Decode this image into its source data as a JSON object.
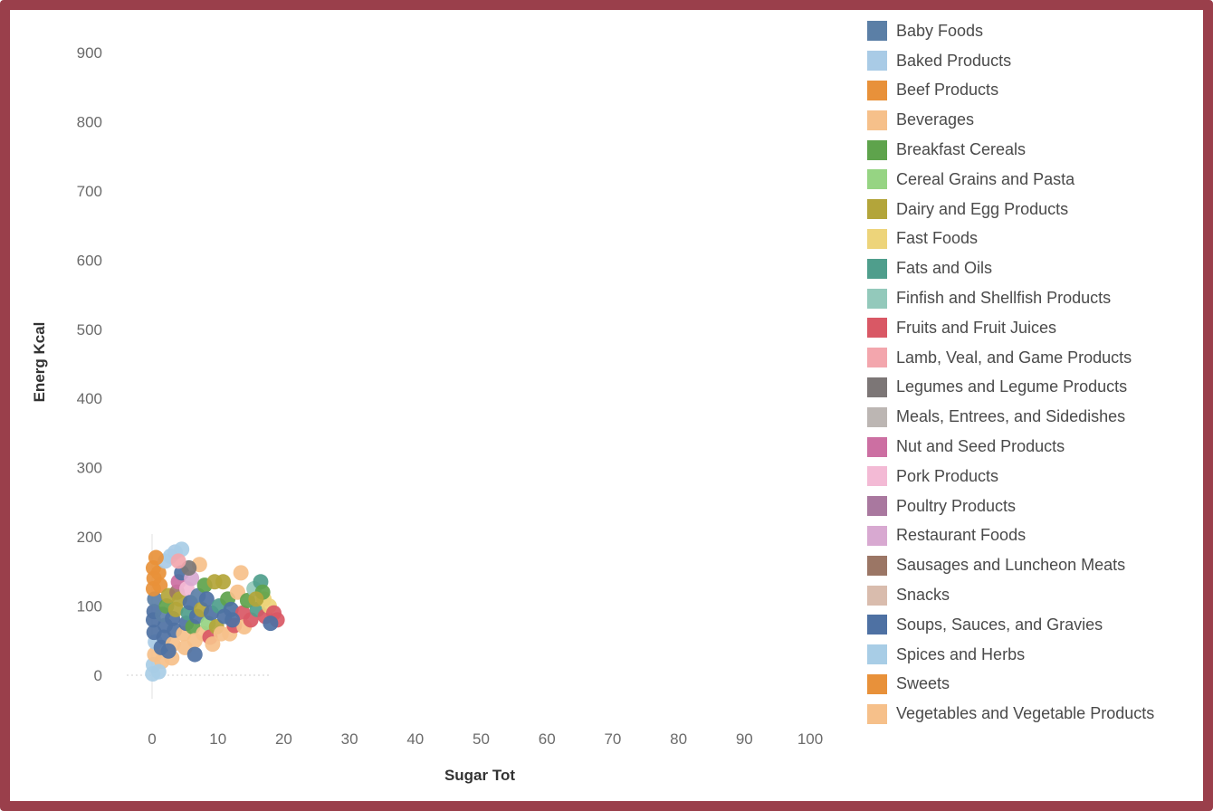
{
  "chart_data": {
    "type": "scatter",
    "xlabel": "Sugar Tot",
    "ylabel": "Energ Kcal",
    "xlim": [
      -5,
      105
    ],
    "ylim": [
      -10,
      940
    ],
    "xticks": [
      0,
      10,
      20,
      30,
      40,
      50,
      60,
      70,
      80,
      90,
      100
    ],
    "yticks": [
      0,
      100,
      200,
      300,
      400,
      500,
      600,
      700,
      800,
      900
    ],
    "legend_position": "right",
    "grid": false,
    "legend": [
      {
        "name": "Baby Foods",
        "color": "#5b7fa6"
      },
      {
        "name": "Baked Products",
        "color": "#a9cbe6"
      },
      {
        "name": "Beef Products",
        "color": "#e8913a"
      },
      {
        "name": "Beverages",
        "color": "#f6c08a"
      },
      {
        "name": "Breakfast Cereals",
        "color": "#5ea34c"
      },
      {
        "name": "Cereal Grains and Pasta",
        "color": "#96d483"
      },
      {
        "name": "Dairy and Egg Products",
        "color": "#b3a53a"
      },
      {
        "name": "Fast Foods",
        "color": "#edd47a"
      },
      {
        "name": "Fats and Oils",
        "color": "#4f9e8c"
      },
      {
        "name": "Finfish and Shellfish Products",
        "color": "#93c9bb"
      },
      {
        "name": "Fruits and Fruit Juices",
        "color": "#d95865"
      },
      {
        "name": "Lamb, Veal, and Game Products",
        "color": "#f3a6ad"
      },
      {
        "name": "Legumes and Legume Products",
        "color": "#7c7676"
      },
      {
        "name": "Meals, Entrees, and Sidedishes",
        "color": "#bcb6b3"
      },
      {
        "name": "Nut and Seed Products",
        "color": "#cc6fa2"
      },
      {
        "name": "Pork Products",
        "color": "#f3bad5"
      },
      {
        "name": "Poultry Products",
        "color": "#a9789f"
      },
      {
        "name": "Restaurant Foods",
        "color": "#d8a9d1"
      },
      {
        "name": "Sausages and Luncheon Meats",
        "color": "#9b7665"
      },
      {
        "name": "Snacks",
        "color": "#d9bcad"
      },
      {
        "name": "Soups, Sauces, and Gravies",
        "color": "#4e71a3"
      },
      {
        "name": "Spices and Herbs",
        "color": "#a8cde6"
      },
      {
        "name": "Sweets",
        "color": "#e8913a"
      },
      {
        "name": "Vegetables and Vegetable Products",
        "color": "#f6c08a"
      }
    ],
    "points": [
      {
        "x": 0.1,
        "y": 2,
        "c": 21
      },
      {
        "x": 0.2,
        "y": 15,
        "c": 21
      },
      {
        "x": 0.4,
        "y": 30,
        "c": 23
      },
      {
        "x": 0.5,
        "y": 48,
        "c": 1
      },
      {
        "x": 0.3,
        "y": 62,
        "c": 20
      },
      {
        "x": 0.2,
        "y": 80,
        "c": 20
      },
      {
        "x": 0.3,
        "y": 92,
        "c": 20
      },
      {
        "x": 0.4,
        "y": 110,
        "c": 0
      },
      {
        "x": 0.2,
        "y": 125,
        "c": 2
      },
      {
        "x": 0.3,
        "y": 140,
        "c": 2
      },
      {
        "x": 0.2,
        "y": 155,
        "c": 2
      },
      {
        "x": 1.0,
        "y": 148,
        "c": 2
      },
      {
        "x": 1.2,
        "y": 130,
        "c": 22
      },
      {
        "x": 1.5,
        "y": 20,
        "c": 3
      },
      {
        "x": 1.4,
        "y": 40,
        "c": 20
      },
      {
        "x": 1.8,
        "y": 55,
        "c": 20
      },
      {
        "x": 2.0,
        "y": 72,
        "c": 20
      },
      {
        "x": 1.6,
        "y": 88,
        "c": 0
      },
      {
        "x": 2.2,
        "y": 100,
        "c": 4
      },
      {
        "x": 2.5,
        "y": 115,
        "c": 6
      },
      {
        "x": 2.0,
        "y": 165,
        "c": 1
      },
      {
        "x": 2.8,
        "y": 172,
        "c": 21
      },
      {
        "x": 3.5,
        "y": 178,
        "c": 1
      },
      {
        "x": 4.5,
        "y": 182,
        "c": 21
      },
      {
        "x": 3.0,
        "y": 25,
        "c": 23
      },
      {
        "x": 3.2,
        "y": 45,
        "c": 3
      },
      {
        "x": 3.4,
        "y": 65,
        "c": 20
      },
      {
        "x": 3.1,
        "y": 82,
        "c": 20
      },
      {
        "x": 3.6,
        "y": 95,
        "c": 6
      },
      {
        "x": 3.8,
        "y": 120,
        "c": 18
      },
      {
        "x": 4.0,
        "y": 135,
        "c": 14
      },
      {
        "x": 4.5,
        "y": 148,
        "c": 20
      },
      {
        "x": 4.2,
        "y": 110,
        "c": 6
      },
      {
        "x": 4.8,
        "y": 60,
        "c": 23
      },
      {
        "x": 5.0,
        "y": 40,
        "c": 3
      },
      {
        "x": 5.2,
        "y": 75,
        "c": 20
      },
      {
        "x": 5.5,
        "y": 90,
        "c": 8
      },
      {
        "x": 5.3,
        "y": 125,
        "c": 15
      },
      {
        "x": 5.8,
        "y": 105,
        "c": 20
      },
      {
        "x": 6.0,
        "y": 140,
        "c": 17
      },
      {
        "x": 6.2,
        "y": 70,
        "c": 4
      },
      {
        "x": 6.5,
        "y": 50,
        "c": 23
      },
      {
        "x": 6.8,
        "y": 85,
        "c": 20
      },
      {
        "x": 7.0,
        "y": 115,
        "c": 0
      },
      {
        "x": 7.2,
        "y": 160,
        "c": 3
      },
      {
        "x": 7.5,
        "y": 95,
        "c": 6
      },
      {
        "x": 7.8,
        "y": 60,
        "c": 23
      },
      {
        "x": 8.0,
        "y": 130,
        "c": 4
      },
      {
        "x": 8.3,
        "y": 110,
        "c": 20
      },
      {
        "x": 8.5,
        "y": 75,
        "c": 5
      },
      {
        "x": 8.8,
        "y": 55,
        "c": 10
      },
      {
        "x": 9.0,
        "y": 90,
        "c": 20
      },
      {
        "x": 9.5,
        "y": 135,
        "c": 6
      },
      {
        "x": 9.8,
        "y": 70,
        "c": 6
      },
      {
        "x": 10.2,
        "y": 100,
        "c": 8
      },
      {
        "x": 10.5,
        "y": 60,
        "c": 23
      },
      {
        "x": 10.8,
        "y": 135,
        "c": 6
      },
      {
        "x": 11.0,
        "y": 85,
        "c": 20
      },
      {
        "x": 11.5,
        "y": 110,
        "c": 4
      },
      {
        "x": 11.8,
        "y": 60,
        "c": 3
      },
      {
        "x": 12.0,
        "y": 95,
        "c": 20
      },
      {
        "x": 12.5,
        "y": 72,
        "c": 10
      },
      {
        "x": 13.0,
        "y": 120,
        "c": 23
      },
      {
        "x": 13.5,
        "y": 148,
        "c": 3
      },
      {
        "x": 13.8,
        "y": 90,
        "c": 10
      },
      {
        "x": 14.0,
        "y": 70,
        "c": 23
      },
      {
        "x": 14.5,
        "y": 108,
        "c": 4
      },
      {
        "x": 15.0,
        "y": 80,
        "c": 10
      },
      {
        "x": 15.5,
        "y": 125,
        "c": 9
      },
      {
        "x": 16.0,
        "y": 95,
        "c": 8
      },
      {
        "x": 16.5,
        "y": 135,
        "c": 8
      },
      {
        "x": 17.0,
        "y": 110,
        "c": 7
      },
      {
        "x": 17.2,
        "y": 85,
        "c": 10
      },
      {
        "x": 17.8,
        "y": 100,
        "c": 7
      },
      {
        "x": 18.5,
        "y": 90,
        "c": 10
      },
      {
        "x": 19.0,
        "y": 80,
        "c": 10
      },
      {
        "x": 18.0,
        "y": 75,
        "c": 20
      },
      {
        "x": 16.8,
        "y": 120,
        "c": 4
      },
      {
        "x": 15.8,
        "y": 110,
        "c": 6
      },
      {
        "x": 6.5,
        "y": 30,
        "c": 20
      },
      {
        "x": 2.5,
        "y": 35,
        "c": 20
      },
      {
        "x": 12.2,
        "y": 80,
        "c": 20
      },
      {
        "x": 9.2,
        "y": 45,
        "c": 23
      },
      {
        "x": 1.0,
        "y": 5,
        "c": 21
      },
      {
        "x": 0.6,
        "y": 170,
        "c": 2
      },
      {
        "x": 5.6,
        "y": 155,
        "c": 12
      },
      {
        "x": 4.0,
        "y": 165,
        "c": 11
      }
    ]
  }
}
